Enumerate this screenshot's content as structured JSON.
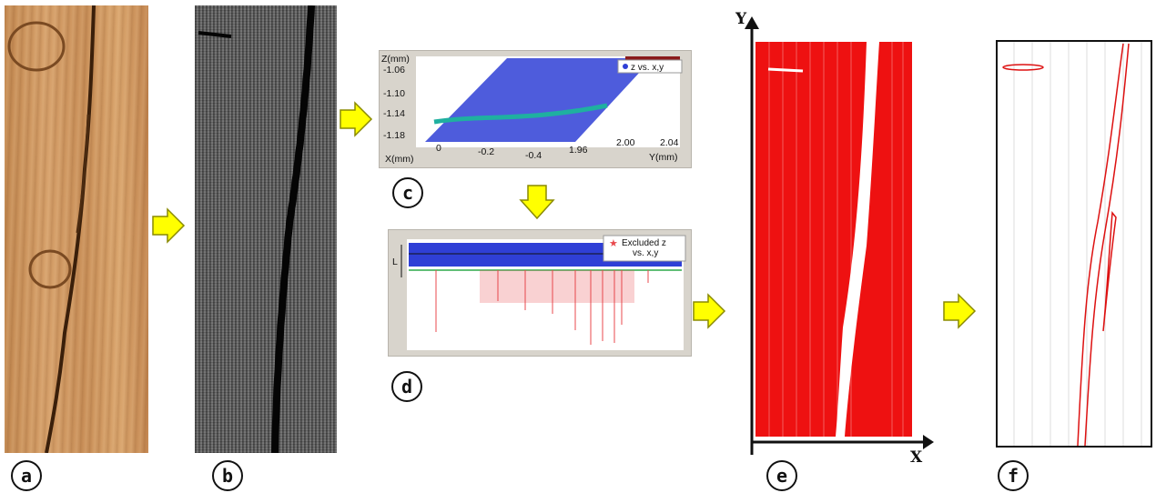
{
  "panels": {
    "a": {
      "label": "a"
    },
    "b": {
      "label": "b"
    },
    "c": {
      "label": "c",
      "z_axis_title": "Z(mm)",
      "z_ticks": [
        "-1.06",
        "-1.10",
        "-1.14",
        "-1.18"
      ],
      "x_axis_title": "X(mm)",
      "x_ticks": [
        "0",
        "-0.2",
        "-0.4"
      ],
      "y_axis_title": "Y(mm)",
      "y_ticks": [
        "1.96",
        "2.00",
        "2.04"
      ],
      "legend": "z vs. x,y"
    },
    "d": {
      "label": "d",
      "marker_label": "L",
      "legend_line1": "Excluded z",
      "legend_line2": "vs. x,y"
    },
    "e": {
      "label": "e",
      "x_axis": "X",
      "y_axis": "Y"
    },
    "f": {
      "label": "f"
    }
  },
  "colors": {
    "arrow_fill": "#ffff00",
    "arrow_stroke": "#8a8a00",
    "points_blue": "#2f3fd6",
    "excluded_red": "#e8484c",
    "threshold_green": "#2fa84a",
    "crack_region_red": "#ee1111",
    "plot_background": "#d8d4cc"
  }
}
